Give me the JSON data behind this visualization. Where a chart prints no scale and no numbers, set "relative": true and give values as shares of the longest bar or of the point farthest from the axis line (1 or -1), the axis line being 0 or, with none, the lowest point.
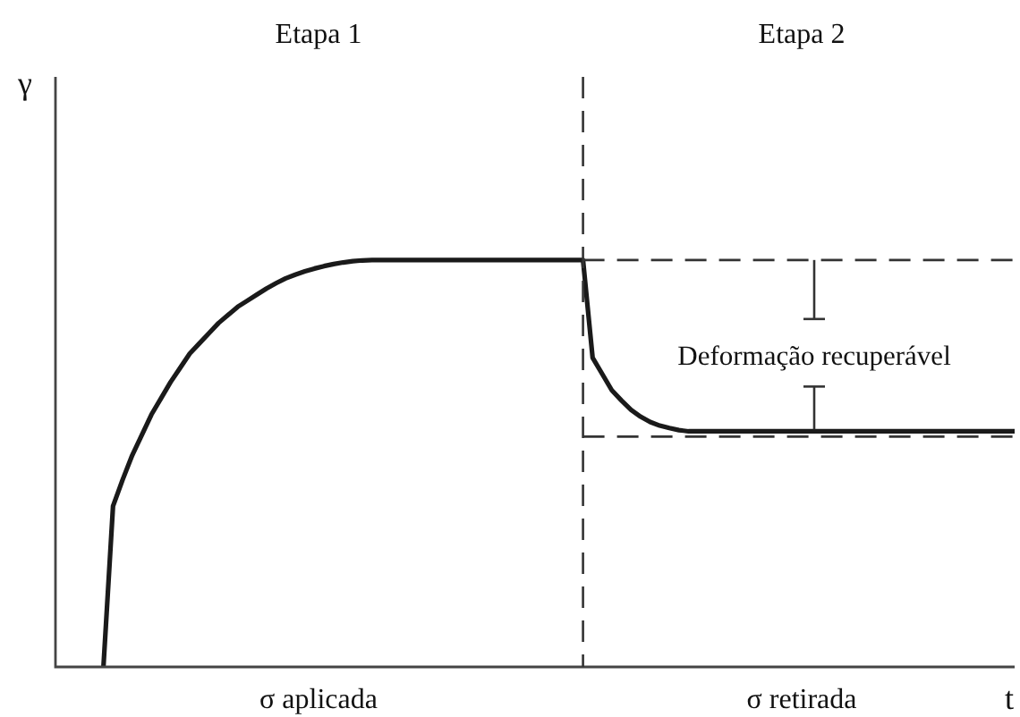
{
  "chart_data": {
    "type": "line",
    "relative": true,
    "xlabel": "t",
    "ylabel": "γ",
    "categories": [
      null,
      null,
      null,
      null,
      null,
      null,
      null,
      null,
      null,
      null,
      null,
      null,
      null,
      null,
      null,
      null,
      null,
      null,
      null,
      null,
      null,
      null,
      null,
      null,
      null,
      null,
      null,
      null,
      null,
      null,
      null,
      null,
      null,
      null,
      null,
      null,
      null,
      null,
      null,
      null,
      null,
      null,
      null,
      null,
      null,
      null,
      null,
      null,
      null,
      null,
      null,
      null,
      null,
      null,
      null,
      null,
      null,
      null,
      null,
      null,
      null,
      null,
      null,
      null,
      null,
      null,
      null,
      null,
      null,
      null,
      null,
      null,
      null,
      null,
      null,
      null,
      null,
      null,
      null,
      null,
      null,
      null,
      null,
      null,
      null,
      null,
      null,
      null,
      null,
      null,
      null,
      null,
      null,
      null,
      null,
      null,
      null,
      null,
      null,
      null,
      null
    ],
    "series": [
      {
        "color": "#1a1a1a",
        "values": [
          null,
          null,
          null,
          null,
          null,
          0,
          0.395,
          0.46,
          0.52,
          0.57,
          0.62,
          0.66,
          0.7,
          0.735,
          0.77,
          0.795,
          0.82,
          0.845,
          0.865,
          0.885,
          0.9,
          0.915,
          0.93,
          0.943,
          0.955,
          0.964,
          0.972,
          0.979,
          0.985,
          0.99,
          0.994,
          0.997,
          0.999,
          1,
          1,
          1,
          1,
          1,
          1,
          1,
          1,
          1,
          1,
          1,
          1,
          1,
          1,
          1,
          1,
          1,
          1,
          1,
          1,
          1,
          1,
          1,
          0.76,
          0.72,
          0.68,
          0.655,
          0.632,
          0.615,
          0.602,
          0.593,
          0.587,
          0.582,
          0.579,
          0.579,
          0.579,
          0.579,
          0.579,
          0.579,
          0.579,
          0.579,
          0.579,
          0.579,
          0.579,
          0.579,
          0.579,
          0.579,
          0.579,
          0.579,
          0.579,
          0.579,
          0.579,
          0.579,
          0.579,
          0.579,
          0.579,
          0.579,
          0.579,
          0.579,
          0.579,
          0.579,
          0.579,
          0.579,
          0.579,
          0.579,
          0.579,
          0.579,
          0.579
        ]
      }
    ],
    "ref_lines": [
      {
        "axis": "y",
        "value": 1,
        "line_style": "dashed",
        "color": "#333333"
      },
      {
        "axis": "y",
        "value": 0.566,
        "line_style": "dashed",
        "color": "#333333"
      }
    ],
    "annotations": [
      "Etapa 1",
      "Etapa 2",
      "Deformação recuperável",
      "σ aplicada",
      "σ retirada"
    ],
    "legend": false,
    "marker": "none",
    "line_style": "solid"
  }
}
